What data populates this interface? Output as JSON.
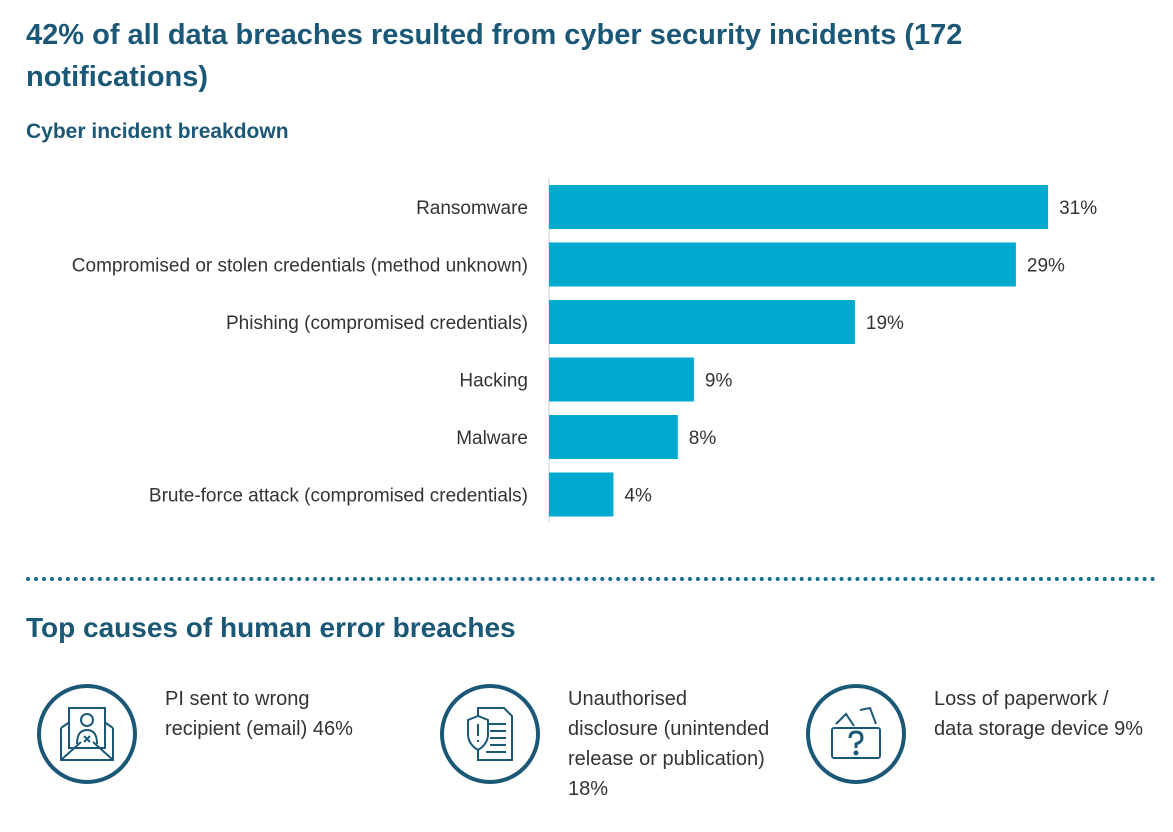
{
  "title": "42% of all data breaches resulted from cyber security incidents (172 notifications)",
  "chart_data": {
    "type": "bar",
    "orientation": "horizontal",
    "title": "Cyber incident breakdown",
    "categories": [
      "Ransomware",
      "Compromised or stolen credentials (method unknown)",
      "Phishing (compromised credentials)",
      "Hacking",
      "Malware",
      "Brute-force attack (compromised credentials)"
    ],
    "values": [
      31,
      29,
      19,
      9,
      8,
      4
    ],
    "value_labels": [
      "31%",
      "29%",
      "19%",
      "9%",
      "8%",
      "4%"
    ],
    "bar_color": "#00a9ce",
    "grid": false
  },
  "human_error": {
    "heading": "Top causes of human error breaches",
    "items": [
      {
        "icon": "email-recipient-icon",
        "text": "PI sent to wrong recipient (email) 46%"
      },
      {
        "icon": "document-shield-icon",
        "text": "Unauthorised disclosure (unintended release or publication) 18%"
      },
      {
        "icon": "lost-folder-icon",
        "text": "Loss of paperwork / data storage device 9%"
      }
    ]
  },
  "colors": {
    "heading": "#1b5877",
    "bar": "#00a9ce"
  }
}
